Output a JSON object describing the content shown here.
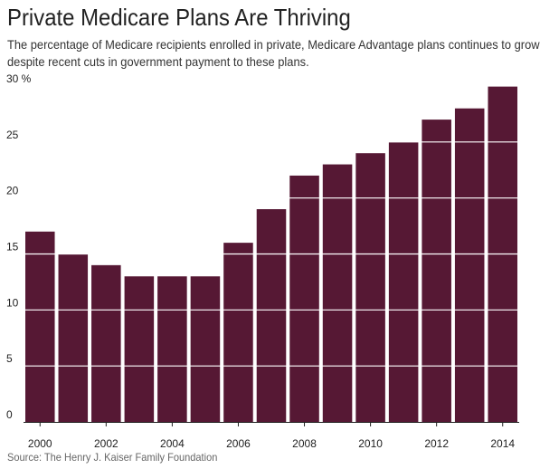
{
  "chart_data": {
    "type": "bar",
    "title": "Private Medicare Plans Are Thriving",
    "subtitle": "The percentage of Medicare recipients enrolled in private, Medicare Advantage plans continues to grow despite recent cuts in government payment to these plans.",
    "source": "Source: The Henry J. Kaiser Family Foundation",
    "categories": [
      "2000",
      "2001",
      "2002",
      "2003",
      "2004",
      "2005",
      "2006",
      "2007",
      "2008",
      "2009",
      "2010",
      "2011",
      "2012",
      "2013",
      "2014"
    ],
    "values": [
      17,
      15,
      14,
      13,
      13,
      13,
      16,
      19,
      22,
      23,
      24,
      25,
      27,
      28,
      30
    ],
    "x_tick_labels": [
      "2000",
      "2002",
      "2004",
      "2006",
      "2008",
      "2010",
      "2012",
      "2014"
    ],
    "y_ticks": [
      0,
      5,
      10,
      15,
      20,
      25,
      30
    ],
    "y_tick_labels": [
      "0",
      "5",
      "10",
      "15",
      "20",
      "25",
      "30 %"
    ],
    "ylim": [
      0,
      30
    ],
    "xlabel": "",
    "ylabel": "",
    "grid": true,
    "bar_color": "#561834",
    "gridline_color": "#ffffff",
    "axis_color": "#222222"
  }
}
